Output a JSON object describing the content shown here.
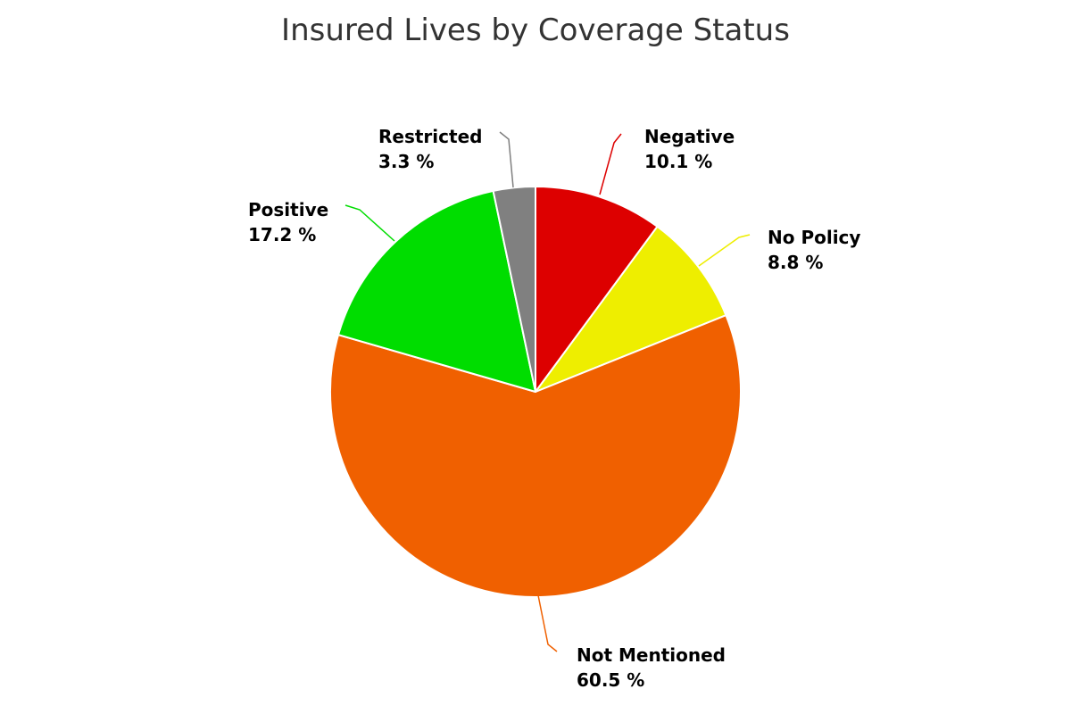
{
  "chart_data": {
    "type": "pie",
    "title": "Insured Lives by Coverage Status",
    "slices": [
      {
        "name": "Negative",
        "label": "Negative",
        "value": 10.1,
        "value_label": "10.1 %",
        "color": "#dd0000"
      },
      {
        "name": "No Policy",
        "label": "No Policy",
        "value": 8.8,
        "value_label": "8.8 %",
        "color": "#eeee00"
      },
      {
        "name": "Not Mentioned",
        "label": "Not Mentioned",
        "value": 60.5,
        "value_label": "60.5 %",
        "color": "#f06000"
      },
      {
        "name": "Positive",
        "label": "Positive",
        "value": 17.2,
        "value_label": "17.2 %",
        "color": "#00dd00"
      },
      {
        "name": "Restricted",
        "label": "Restricted",
        "value": 3.3,
        "value_label": "3.3 %",
        "color": "#808080"
      }
    ]
  }
}
